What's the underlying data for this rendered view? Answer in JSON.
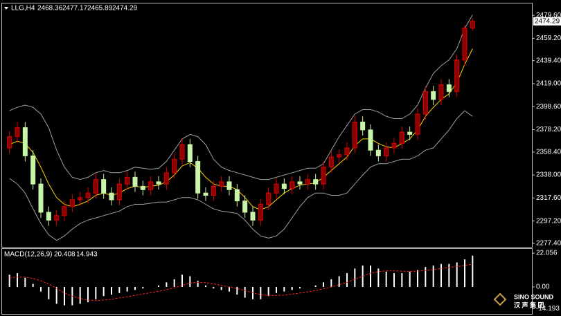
{
  "chart_data": [
    {
      "type": "candlestick",
      "title": "LLG,H4",
      "open": [
        2362,
        2372,
        2380,
        2355,
        2330,
        2305,
        2298,
        2302,
        2310,
        2316,
        2318,
        2322,
        2334,
        2322,
        2316,
        2330,
        2336,
        2328,
        2325,
        2332,
        2330,
        2340,
        2352,
        2365,
        2350,
        2322,
        2320,
        2328,
        2332,
        2325,
        2315,
        2305,
        2298,
        2312,
        2322,
        2330,
        2326,
        2332,
        2330,
        2334,
        2330,
        2345,
        2354,
        2356,
        2362,
        2385,
        2378,
        2360,
        2355,
        2362,
        2366,
        2376,
        2374,
        2392,
        2412,
        2405,
        2418,
        2412,
        2440,
        2468.36
      ],
      "high": [
        2377,
        2385,
        2385,
        2360,
        2335,
        2310,
        2307,
        2315,
        2321,
        2323,
        2327,
        2339,
        2339,
        2327,
        2335,
        2341,
        2341,
        2333,
        2337,
        2337,
        2345,
        2357,
        2370,
        2370,
        2355,
        2327,
        2333,
        2337,
        2337,
        2330,
        2320,
        2310,
        2317,
        2327,
        2335,
        2335,
        2337,
        2337,
        2339,
        2339,
        2350,
        2359,
        2361,
        2367,
        2390,
        2390,
        2383,
        2365,
        2367,
        2371,
        2381,
        2381,
        2397,
        2417,
        2417,
        2423,
        2423,
        2445,
        2471,
        2477.17
      ],
      "low": [
        2357,
        2367,
        2350,
        2325,
        2300,
        2293,
        2293,
        2297,
        2305,
        2311,
        2313,
        2317,
        2317,
        2311,
        2311,
        2325,
        2323,
        2320,
        2320,
        2325,
        2325,
        2335,
        2347,
        2345,
        2317,
        2315,
        2315,
        2323,
        2320,
        2310,
        2300,
        2293,
        2293,
        2307,
        2317,
        2321,
        2321,
        2325,
        2325,
        2325,
        2325,
        2340,
        2349,
        2351,
        2357,
        2373,
        2355,
        2350,
        2350,
        2357,
        2361,
        2369,
        2369,
        2387,
        2400,
        2400,
        2407,
        2407,
        2435,
        2465.89
      ],
      "close": [
        2372,
        2380,
        2355,
        2330,
        2305,
        2298,
        2302,
        2310,
        2316,
        2318,
        2322,
        2334,
        2322,
        2316,
        2330,
        2336,
        2328,
        2325,
        2332,
        2330,
        2340,
        2352,
        2365,
        2350,
        2322,
        2320,
        2328,
        2332,
        2325,
        2315,
        2305,
        2298,
        2312,
        2322,
        2330,
        2326,
        2332,
        2330,
        2334,
        2330,
        2345,
        2354,
        2356,
        2362,
        2385,
        2378,
        2360,
        2355,
        2362,
        2366,
        2376,
        2374,
        2392,
        2412,
        2405,
        2418,
        2412,
        2440,
        2468.36,
        2474.29
      ],
      "up_color": "#e00000",
      "down_color": "#c8f5a8",
      "series": [
        {
          "color": "#a0a0a0",
          "values": [
            2395,
            2398,
            2400,
            2398,
            2392,
            2380,
            2360,
            2345,
            2336,
            2334,
            2336,
            2340,
            2342,
            2340,
            2340,
            2342,
            2345,
            2344,
            2343,
            2344,
            2350,
            2360,
            2370,
            2374,
            2372,
            2365,
            2352,
            2345,
            2342,
            2340,
            2338,
            2336,
            2334,
            2334,
            2336,
            2338,
            2340,
            2342,
            2344,
            2344,
            2348,
            2360,
            2372,
            2382,
            2392,
            2396,
            2396,
            2394,
            2390,
            2388,
            2388,
            2392,
            2400,
            2415,
            2428,
            2435,
            2440,
            2450,
            2468,
            2480
          ]
        },
        {
          "color": "#ffd700",
          "values": [
            2365,
            2368,
            2366,
            2358,
            2345,
            2330,
            2318,
            2312,
            2310,
            2312,
            2315,
            2320,
            2322,
            2320,
            2322,
            2326,
            2328,
            2327,
            2328,
            2329,
            2332,
            2338,
            2346,
            2349,
            2344,
            2336,
            2330,
            2328,
            2328,
            2325,
            2318,
            2310,
            2307,
            2310,
            2316,
            2322,
            2326,
            2329,
            2330,
            2331,
            2336,
            2342,
            2348,
            2354,
            2364,
            2370,
            2370,
            2366,
            2363,
            2362,
            2366,
            2370,
            2378,
            2390,
            2398,
            2405,
            2410,
            2420,
            2436,
            2450
          ]
        },
        {
          "color": "#a0a0a0",
          "values": [
            2335,
            2330,
            2322,
            2308,
            2295,
            2285,
            2280,
            2284,
            2290,
            2295,
            2298,
            2300,
            2302,
            2304,
            2306,
            2310,
            2312,
            2312,
            2313,
            2314,
            2314,
            2316,
            2318,
            2318,
            2316,
            2312,
            2308,
            2306,
            2305,
            2304,
            2298,
            2290,
            2284,
            2282,
            2284,
            2290,
            2300,
            2310,
            2318,
            2322,
            2322,
            2320,
            2320,
            2322,
            2330,
            2338,
            2345,
            2348,
            2348,
            2350,
            2352,
            2352,
            2355,
            2360,
            2362,
            2370,
            2378,
            2388,
            2395,
            2390
          ]
        }
      ],
      "ylim": [
        2274.3,
        2490.1
      ],
      "yticks": [
        {
          "value": 2479.6,
          "label": "2479.60"
        },
        {
          "value": 2459.2,
          "label": "2459.20"
        },
        {
          "value": 2439.4,
          "label": "2439.40"
        },
        {
          "value": 2419,
          "label": "2419.00"
        },
        {
          "value": 2398.6,
          "label": "2398.60"
        },
        {
          "value": 2378.2,
          "label": "2378.20"
        },
        {
          "value": 2358.4,
          "label": "2358.40"
        },
        {
          "value": 2338,
          "label": "2338.00"
        },
        {
          "value": 2317.6,
          "label": "2317.60"
        },
        {
          "value": 2297.2,
          "label": "2297.20"
        },
        {
          "value": 2277.4,
          "label": "2277.40"
        }
      ]
    },
    {
      "type": "macd",
      "title": "MACD(12,26,9)",
      "color": "#ffffff",
      "values": [
        8,
        9,
        6,
        2,
        -3,
        -8,
        -11,
        -12,
        -12,
        -11,
        -10,
        -8,
        -6,
        -5,
        -4,
        -3,
        -2,
        -1,
        0,
        1,
        3,
        5,
        8,
        7,
        4,
        1,
        -1,
        -2,
        -3,
        -5,
        -7,
        -8,
        -8,
        -6,
        -4,
        -3,
        -2,
        -1,
        0,
        1,
        3,
        5,
        7,
        9,
        12,
        14,
        14,
        12,
        10,
        9,
        9,
        10,
        11,
        13,
        14,
        15,
        15,
        16,
        18,
        20.408
      ],
      "series": [
        {
          "color": "#ff2020",
          "values": [
            6,
            6.5,
            6.5,
            5.5,
            4,
            2,
            -1,
            -4,
            -6,
            -7.5,
            -8.5,
            -9,
            -8.5,
            -8,
            -7.2,
            -6.4,
            -5.5,
            -4.6,
            -3.7,
            -2.8,
            -1.8,
            -0.6,
            1,
            2.5,
            3,
            2.8,
            2,
            1,
            0,
            -1,
            -2.4,
            -3.8,
            -5,
            -5.5,
            -5.6,
            -5.3,
            -4.7,
            -4,
            -3.2,
            -2.3,
            -1.2,
            0,
            1.5,
            3,
            5,
            7,
            9,
            10,
            10.5,
            10.5,
            10.3,
            10.2,
            10.3,
            10.7,
            11.3,
            12,
            12.7,
            13.3,
            14,
            14.943
          ]
        }
      ],
      "ylim": [
        -17.6,
        24.8
      ],
      "yticks": [
        22.056,
        {
          "value": 0,
          "label": "0.00"
        },
        -14.193
      ]
    }
  ],
  "watermark": {
    "brand": "SINO SOUND",
    "chinese": "汉 声 集 团"
  }
}
